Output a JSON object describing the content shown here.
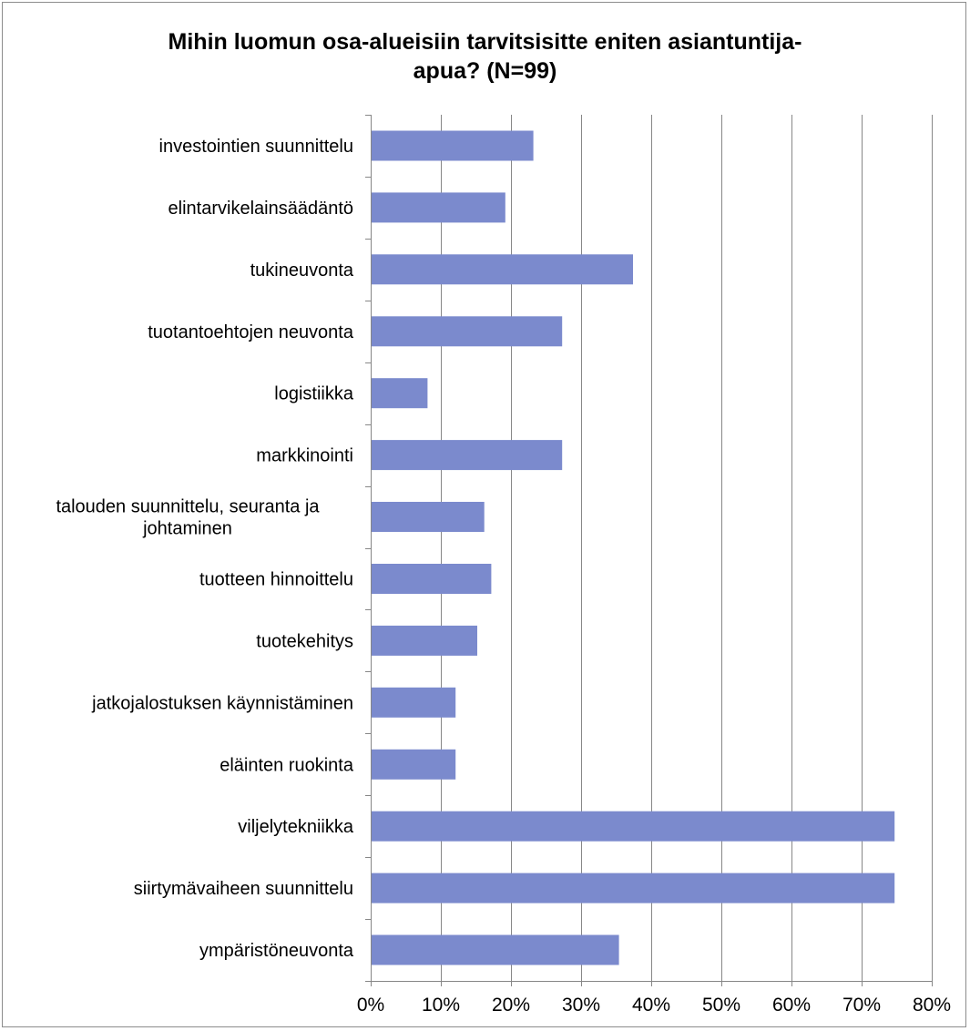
{
  "chart_data": {
    "type": "bar",
    "orientation": "horizontal",
    "title": "Mihin luomun osa-alueisiin tarvitsisitte eniten asiantuntija-apua?   (N=99)",
    "title_lines": [
      "Mihin luomun osa-alueisiin tarvitsisitte eniten asiantuntija-",
      "apua?   (N=99)"
    ],
    "categories": [
      [
        "investointien suunnittelu"
      ],
      [
        "elintarvikelainsäädäntö"
      ],
      [
        "tukineuvonta"
      ],
      [
        "tuotantoehtojen neuvonta"
      ],
      [
        "logistiikka"
      ],
      [
        "markkinointi"
      ],
      [
        "talouden suunnittelu, seuranta ja",
        "johtaminen"
      ],
      [
        "tuotteen hinnoittelu"
      ],
      [
        "tuotekehitys"
      ],
      [
        "jatkojalostuksen käynnistäminen"
      ],
      [
        "eläinten ruokinta"
      ],
      [
        "viljelytekniikka"
      ],
      [
        "siirtymävaiheen suunnittelu"
      ],
      [
        "ympäristöneuvonta"
      ]
    ],
    "values": [
      23.2,
      19.2,
      37.4,
      27.3,
      8.1,
      27.3,
      16.2,
      17.2,
      15.2,
      12.1,
      12.1,
      74.7,
      74.7,
      35.4
    ],
    "xlim": [
      0,
      80
    ],
    "xticks": [
      0,
      10,
      20,
      30,
      40,
      50,
      60,
      70,
      80
    ],
    "xtick_labels": [
      "0%",
      "10%",
      "20%",
      "30%",
      "40%",
      "50%",
      "60%",
      "70%",
      "80%"
    ],
    "xlabel": "",
    "ylabel": "",
    "grid": true,
    "legend": "none",
    "bar_color": "#7b8acd",
    "gridline_color": "#878787"
  }
}
